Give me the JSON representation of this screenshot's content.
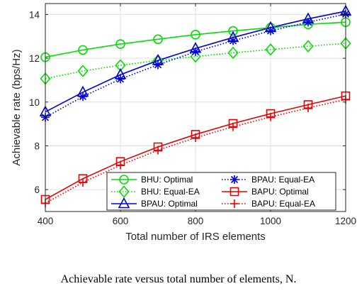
{
  "chart_data": {
    "type": "line",
    "title": "",
    "xlabel": "Total number of IRS elements",
    "ylabel": "Achievable rate (bps/Hz)",
    "caption": "Achievable rate versus total number of elements, N.",
    "xlim": [
      400,
      1200
    ],
    "ylim": [
      5,
      14.5
    ],
    "xticks": [
      400,
      600,
      800,
      1000,
      1200
    ],
    "yticks": [
      6,
      8,
      10,
      12,
      14
    ],
    "grid": true,
    "legend_position": "bottom-right",
    "x": [
      400,
      500,
      600,
      700,
      800,
      900,
      1000,
      1100,
      1200
    ],
    "series": [
      {
        "name": "BHU: Optimal",
        "color": "#00e000",
        "dash": "solid",
        "marker": "circle",
        "values": [
          12.05,
          12.38,
          12.65,
          12.87,
          13.08,
          13.25,
          13.4,
          13.55,
          13.65
        ]
      },
      {
        "name": "BHU: Equal-EA",
        "color": "#00e000",
        "dash": "dotted",
        "marker": "diamond",
        "values": [
          11.07,
          11.42,
          11.68,
          11.9,
          12.08,
          12.25,
          12.4,
          12.55,
          12.68
        ]
      },
      {
        "name": "BPAU: Optimal",
        "color": "#0000dd",
        "dash": "solid",
        "marker": "triangle",
        "values": [
          9.55,
          10.45,
          11.25,
          11.9,
          12.45,
          12.95,
          13.4,
          13.8,
          14.15
        ]
      },
      {
        "name": "BPAU: Equal-EA",
        "color": "#0000dd",
        "dash": "dotted",
        "marker": "star",
        "values": [
          9.3,
          10.25,
          11.05,
          11.7,
          12.3,
          12.8,
          13.25,
          13.65,
          14.02
        ]
      },
      {
        "name": "BAPU: Optimal",
        "color": "#ee0000",
        "dash": "solid",
        "marker": "square",
        "values": [
          5.55,
          6.5,
          7.28,
          7.95,
          8.52,
          9.02,
          9.47,
          9.88,
          10.28
        ]
      },
      {
        "name": "BAPU: Equal-EA",
        "color": "#ee0000",
        "dash": "dotted",
        "marker": "plus",
        "values": [
          5.38,
          6.33,
          7.12,
          7.8,
          8.37,
          8.87,
          9.32,
          9.73,
          10.12
        ]
      }
    ]
  }
}
